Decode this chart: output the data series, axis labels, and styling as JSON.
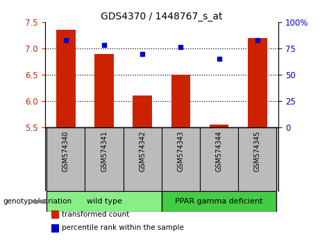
{
  "title": "GDS4370 / 1448767_s_at",
  "samples": [
    "GSM574340",
    "GSM574341",
    "GSM574342",
    "GSM574343",
    "GSM574344",
    "GSM574345"
  ],
  "bar_values": [
    7.35,
    6.9,
    6.1,
    6.5,
    5.55,
    7.2
  ],
  "percentile_values": [
    83,
    78,
    70,
    76,
    65,
    83
  ],
  "bar_color": "#cc2200",
  "dot_color": "#0000cc",
  "ylim_left": [
    5.5,
    7.5
  ],
  "ylim_right": [
    0,
    100
  ],
  "yticks_left": [
    5.5,
    6.0,
    6.5,
    7.0,
    7.5
  ],
  "yticks_right": [
    0,
    25,
    50,
    75,
    100
  ],
  "ytick_labels_right": [
    "0",
    "25",
    "50",
    "75",
    "100%"
  ],
  "hgrid_lines": [
    6.0,
    6.5,
    7.0
  ],
  "groups": [
    {
      "label": "wild type",
      "indices": [
        0,
        1,
        2
      ],
      "color": "#88ee88"
    },
    {
      "label": "PPAR gamma deficient",
      "indices": [
        3,
        4,
        5
      ],
      "color": "#44cc44"
    }
  ],
  "legend_items": [
    {
      "label": "transformed count",
      "color": "#cc2200"
    },
    {
      "label": "percentile rank within the sample",
      "color": "#0000cc"
    }
  ],
  "genotype_label": "genotype/variation",
  "bar_width": 0.5,
  "background_color": "#ffffff",
  "plot_bg": "#ffffff",
  "tick_color_left": "#cc2200",
  "tick_color_right": "#0000cc",
  "sample_bg_color": "#bbbbbb",
  "bar_bottom": 5.5
}
